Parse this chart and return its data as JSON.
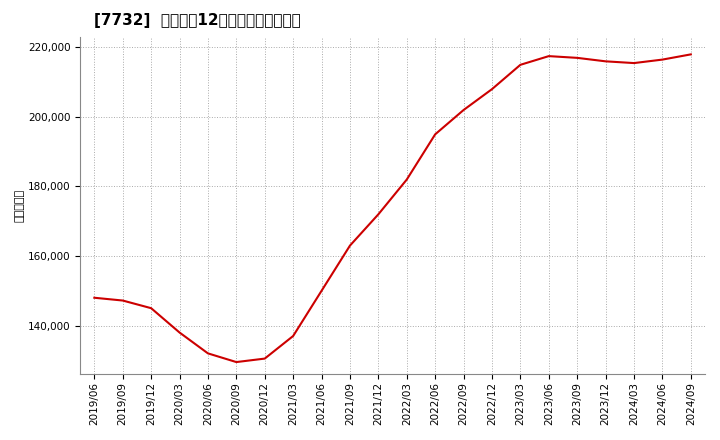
{
  "title": "[7732]  売上高の12か月移動合計の推移",
  "ylabel": "（百万円）",
  "line_color": "#cc0000",
  "background_color": "#ffffff",
  "grid_color": "#aaaaaa",
  "dates": [
    "2019/06",
    "2019/09",
    "2019/12",
    "2020/03",
    "2020/06",
    "2020/09",
    "2020/12",
    "2021/03",
    "2021/06",
    "2021/09",
    "2021/12",
    "2022/03",
    "2022/06",
    "2022/09",
    "2022/12",
    "2023/03",
    "2023/06",
    "2023/09",
    "2023/12",
    "2024/03",
    "2024/06",
    "2024/09"
  ],
  "values": [
    148000,
    147200,
    145000,
    138000,
    132000,
    129500,
    130500,
    137000,
    150000,
    163000,
    172000,
    182000,
    195000,
    202000,
    208000,
    215000,
    217500,
    217000,
    216000,
    215500,
    216500,
    218000
  ],
  "yticks": [
    140000,
    160000,
    180000,
    200000,
    220000
  ],
  "ylim": [
    126000,
    223000
  ],
  "title_fontsize": 11,
  "tick_fontsize": 7.5,
  "ylabel_fontsize": 8
}
